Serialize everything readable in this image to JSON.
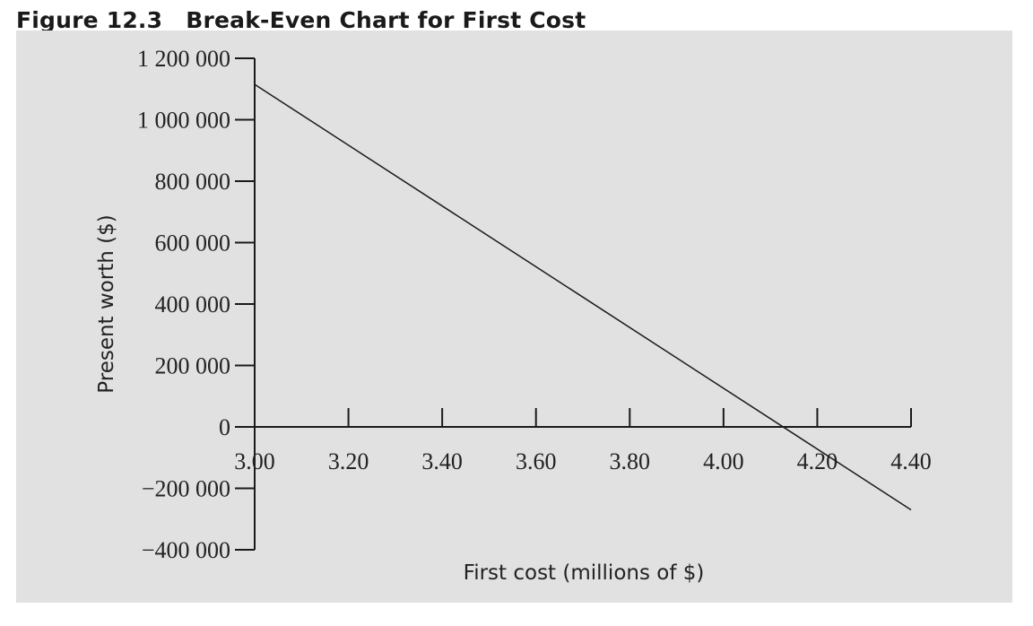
{
  "figure": {
    "number": "Figure 12.3",
    "title": "Break-Even Chart for First Cost"
  },
  "colors": {
    "panel_background": "#e1e1e1",
    "axis": "#1a1a1a",
    "line": "#1a1a1a"
  },
  "chart_data": {
    "type": "line",
    "xlabel": "First cost (millions of $)",
    "ylabel": "Present worth ($)",
    "xlim": [
      3.0,
      4.4
    ],
    "ylim": [
      -400000,
      1200000
    ],
    "grid": false,
    "x_ticks": [
      3.0,
      3.2,
      3.4,
      3.6,
      3.8,
      4.0,
      4.2,
      4.4
    ],
    "x_tick_labels": [
      "3.00",
      "3.20",
      "3.40",
      "3.60",
      "3.80",
      "4.00",
      "4.20",
      "4.40"
    ],
    "y_ticks": [
      1200000,
      1000000,
      800000,
      600000,
      400000,
      200000,
      0,
      -200000,
      -400000
    ],
    "y_tick_labels": [
      "1 200 000",
      "1 000 000",
      "800 000",
      "600 000",
      "400 000",
      "200 000",
      "0",
      "−200 000",
      "−400 000"
    ],
    "series": [
      {
        "x": [
          3.0,
          4.4
        ],
        "y": [
          1115000,
          -270000
        ]
      }
    ]
  }
}
